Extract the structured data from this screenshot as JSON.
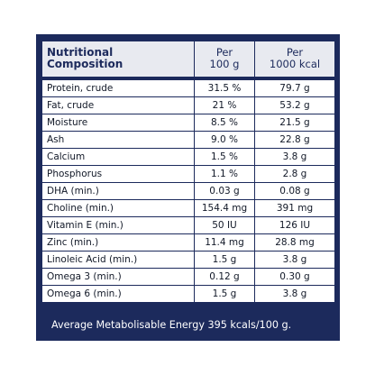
{
  "table": {
    "header": {
      "name_line1": "Nutritional",
      "name_line2": "Composition",
      "col2_line1": "Per",
      "col2_line2": "100 g",
      "col3_line1": "Per",
      "col3_line2": "1000 kcal"
    },
    "rows": [
      {
        "name": "Protein, crude",
        "per100g": "31.5 %",
        "per1000kcal": "79.7 g"
      },
      {
        "name": "Fat, crude",
        "per100g": "21 %",
        "per1000kcal": "53.2 g"
      },
      {
        "name": "Moisture",
        "per100g": "8.5 %",
        "per1000kcal": "21.5 g"
      },
      {
        "name": "Ash",
        "per100g": "9.0 %",
        "per1000kcal": "22.8 g"
      },
      {
        "name": "Calcium",
        "per100g": "1.5 %",
        "per1000kcal": "3.8 g"
      },
      {
        "name": "Phosphorus",
        "per100g": "1.1 %",
        "per1000kcal": "2.8 g"
      },
      {
        "name": "DHA (min.)",
        "per100g": "0.03 g",
        "per1000kcal": "0.08 g"
      },
      {
        "name": "Choline (min.)",
        "per100g": "154.4 mg",
        "per1000kcal": "391 mg"
      },
      {
        "name": "Vitamin E (min.)",
        "per100g": "50 IU",
        "per1000kcal": "126 IU"
      },
      {
        "name": "Zinc (min.)",
        "per100g": "11.4 mg",
        "per1000kcal": "28.8 mg"
      },
      {
        "name": "Linoleic Acid (min.)",
        "per100g": "1.5 g",
        "per1000kcal": "3.8 g"
      },
      {
        "name": "Omega 3 (min.)",
        "per100g": "0.12 g",
        "per1000kcal": "0.30 g"
      },
      {
        "name": "Omega 6 (min.)",
        "per100g": "1.5 g",
        "per1000kcal": "3.8 g"
      }
    ]
  },
  "footer": {
    "energy_text": "Average Metabolisable Energy 395 kcals/100 g."
  },
  "colors": {
    "navy": "#1c2a5c",
    "header_bg": "#e8eaf0",
    "cell_bg": "#ffffff"
  }
}
